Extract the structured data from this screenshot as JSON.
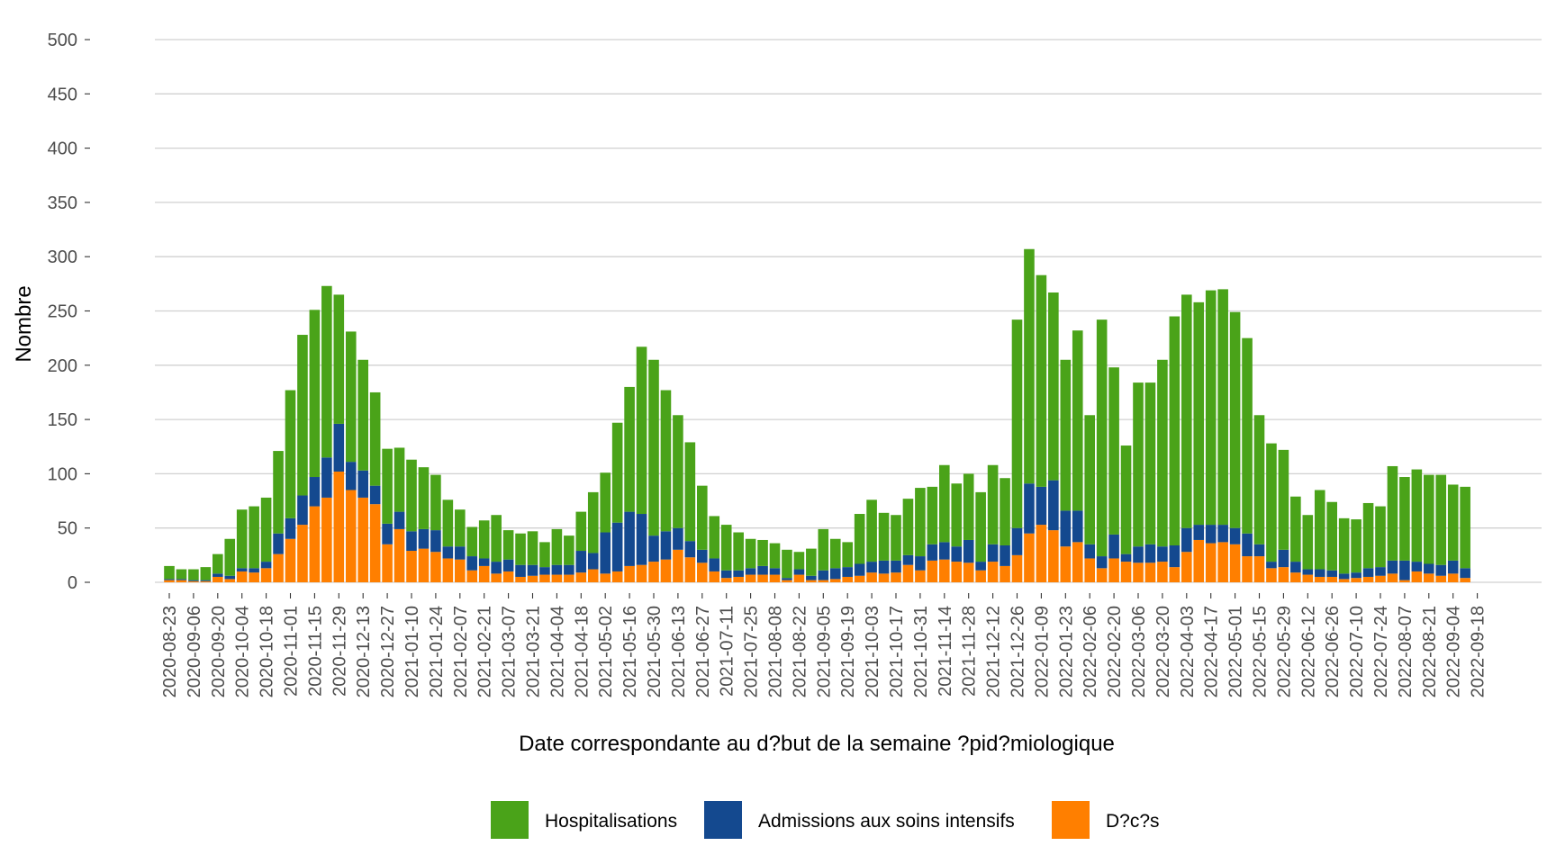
{
  "chart_data": {
    "type": "bar",
    "stacked": true,
    "xlabel": "Date correspondante au d?but de la semaine ?pid?miologique",
    "ylabel": "Nombre",
    "ylim": [
      0,
      500
    ],
    "y_ticks": [
      0,
      50,
      100,
      150,
      200,
      250,
      300,
      350,
      400,
      450,
      500
    ],
    "grid": "horizontal",
    "legend_position": "bottom",
    "colors": {
      "Hospitalisations": "#4aa319",
      "Admissions aux soins intensifs": "#14498f",
      "D?c?s": "#ff7f00"
    },
    "x_ticks": [
      "2020-08-23",
      "2020-09-06",
      "2020-09-20",
      "2020-10-04",
      "2020-10-18",
      "2020-11-01",
      "2020-11-15",
      "2020-11-29",
      "2020-12-13",
      "2020-12-27",
      "2021-01-10",
      "2021-01-24",
      "2021-02-07",
      "2021-02-21",
      "2021-03-07",
      "2021-03-21",
      "2021-04-04",
      "2021-04-18",
      "2021-05-02",
      "2021-05-16",
      "2021-05-30",
      "2021-06-13",
      "2021-06-27",
      "2021-07-11",
      "2021-07-25",
      "2021-08-08",
      "2021-08-22",
      "2021-09-05",
      "2021-09-19",
      "2021-10-03",
      "2021-10-17",
      "2021-10-31",
      "2021-11-14",
      "2021-11-28",
      "2021-12-12",
      "2021-12-26",
      "2022-01-09",
      "2022-01-23",
      "2022-02-06",
      "2022-02-20",
      "2022-03-06",
      "2022-03-20",
      "2022-04-03",
      "2022-04-17",
      "2022-05-01",
      "2022-05-15",
      "2022-05-29",
      "2022-06-12",
      "2022-06-26",
      "2022-07-10",
      "2022-07-24",
      "2022-08-07",
      "2022-08-21",
      "2022-09-04",
      "2022-09-18"
    ],
    "series": [
      {
        "name": "D?c?s",
        "values": [
          2,
          2,
          1,
          1,
          5,
          3,
          10,
          9,
          13,
          26,
          40,
          53,
          70,
          78,
          102,
          85,
          78,
          72,
          35,
          49,
          29,
          31,
          28,
          22,
          21,
          11,
          15,
          8,
          10,
          5,
          6,
          7,
          7,
          7,
          9,
          12,
          8,
          10,
          15,
          16,
          19,
          21,
          30,
          23,
          18,
          10,
          4,
          5,
          7,
          7,
          7,
          2,
          7,
          2,
          2,
          3,
          5,
          6,
          9,
          8,
          9,
          16,
          11,
          20,
          21,
          19,
          18,
          11,
          19,
          15,
          25,
          45,
          53,
          48,
          33,
          37,
          22,
          13,
          22,
          19,
          18,
          18,
          19,
          14,
          28,
          39,
          36,
          37,
          35,
          24,
          24,
          13,
          14,
          9,
          7,
          5,
          5,
          3,
          4,
          5,
          6,
          8,
          2,
          10,
          8,
          6,
          8,
          4
        ]
      },
      {
        "name": "Admissions aux soins intensifs",
        "values": [
          1,
          1,
          1,
          1,
          3,
          3,
          3,
          4,
          6,
          19,
          19,
          27,
          27,
          37,
          44,
          26,
          25,
          17,
          19,
          16,
          18,
          18,
          20,
          11,
          12,
          13,
          7,
          11,
          11,
          11,
          10,
          7,
          9,
          9,
          20,
          15,
          38,
          45,
          50,
          47,
          24,
          26,
          20,
          15,
          12,
          12,
          7,
          6,
          6,
          8,
          6,
          2,
          5,
          4,
          9,
          10,
          9,
          11,
          10,
          12,
          11,
          9,
          13,
          15,
          16,
          14,
          21,
          8,
          16,
          19,
          25,
          46,
          35,
          46,
          33,
          29,
          13,
          11,
          22,
          7,
          15,
          17,
          14,
          20,
          22,
          14,
          17,
          16,
          15,
          21,
          11,
          6,
          16,
          10,
          5,
          7,
          6,
          5,
          5,
          8,
          8,
          12,
          18,
          9,
          9,
          10,
          12,
          9
        ]
      },
      {
        "name": "Hospitalisations",
        "values": [
          12,
          9,
          10,
          12,
          18,
          34,
          54,
          57,
          59,
          76,
          118,
          148,
          154,
          158,
          119,
          120,
          102,
          86,
          69,
          59,
          66,
          57,
          51,
          43,
          34,
          27,
          35,
          43,
          27,
          29,
          31,
          23,
          33,
          27,
          36,
          56,
          55,
          92,
          115,
          154,
          162,
          130,
          104,
          91,
          59,
          39,
          42,
          35,
          27,
          24,
          23,
          26,
          16,
          25,
          38,
          27,
          23,
          46,
          57,
          44,
          42,
          52,
          63,
          53,
          71,
          58,
          61,
          64,
          73,
          62,
          192,
          216,
          195,
          173,
          139,
          166,
          119,
          218,
          154,
          100,
          151,
          149,
          172,
          211,
          215,
          205,
          216,
          217,
          199,
          180,
          119,
          109,
          92,
          60,
          50,
          73,
          63,
          51,
          49,
          60,
          56,
          87,
          77,
          85,
          82,
          83,
          70,
          75
        ]
      }
    ]
  },
  "legend": {
    "items": [
      {
        "label": "Hospitalisations",
        "color": "#4aa319"
      },
      {
        "label": "Admissions aux soins intensifs",
        "color": "#14498f"
      },
      {
        "label": "D?c?s",
        "color": "#ff7f00"
      }
    ]
  }
}
